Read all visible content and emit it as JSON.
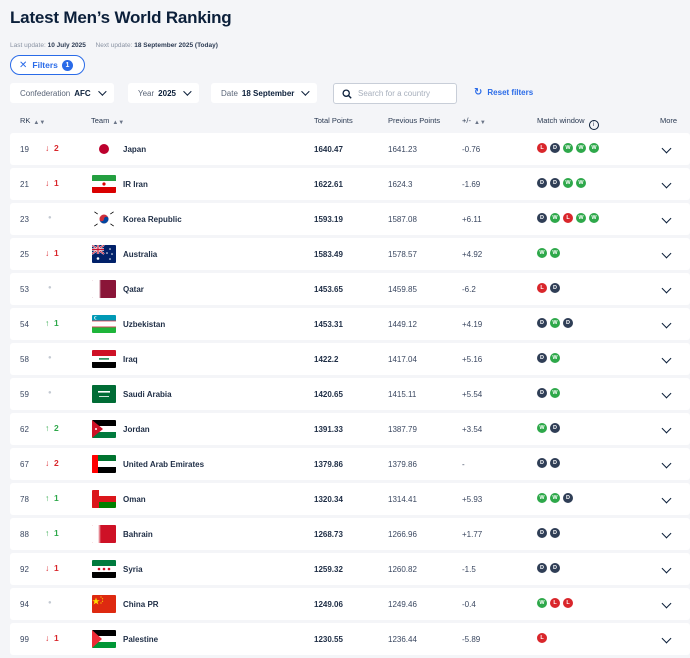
{
  "page": {
    "title": "Latest Men’s World Ranking",
    "last_update_label": "Last update:",
    "last_update": "10 July 2025",
    "next_update_label": "Next update:",
    "next_update": "18 September 2025 (Today)"
  },
  "filters": {
    "button_label": "Filters",
    "count": "1",
    "confederation_label": "Confederation",
    "confederation_value": "AFC",
    "year_label": "Year",
    "year_value": "2025",
    "date_label": "Date",
    "date_value": "18 September",
    "search_placeholder": "Search for a country",
    "reset_label": "Reset filters"
  },
  "columns": {
    "rk": "RK",
    "team": "Team",
    "total_points": "Total Points",
    "previous_points": "Previous Points",
    "diff": "+/-",
    "match_window": "Match window",
    "more": "More"
  },
  "colors": {
    "accent": "#2a6be8",
    "win": "#2ea84a",
    "draw": "#2f3e56",
    "loss": "#d9262b",
    "down": "#d9262b",
    "up": "#2ea84a"
  },
  "icons": {
    "down": "arrow-down-icon",
    "up": "arrow-up-icon",
    "same": "dot-icon",
    "expand": "chevron-down-icon",
    "search": "search-icon",
    "reset": "refresh-icon",
    "info": "info-icon",
    "close": "close-icon"
  },
  "rows": [
    {
      "rank": "19",
      "dir": "down",
      "move": "2",
      "team": "Japan",
      "flag": "japan-flag",
      "points": "1640.47",
      "previous": "1641.23",
      "diff": "-0.76",
      "results": [
        "L",
        "D",
        "W",
        "W",
        "W"
      ]
    },
    {
      "rank": "21",
      "dir": "down",
      "move": "1",
      "team": "IR Iran",
      "flag": "iran-flag",
      "points": "1622.61",
      "previous": "1624.3",
      "diff": "-1.69",
      "results": [
        "D",
        "D",
        "W",
        "W"
      ]
    },
    {
      "rank": "23",
      "dir": "same",
      "move": "",
      "team": "Korea Republic",
      "flag": "korea-flag",
      "points": "1593.19",
      "previous": "1587.08",
      "diff": "+6.11",
      "results": [
        "D",
        "W",
        "L",
        "W",
        "W"
      ]
    },
    {
      "rank": "25",
      "dir": "down",
      "move": "1",
      "team": "Australia",
      "flag": "australia-flag",
      "points": "1583.49",
      "previous": "1578.57",
      "diff": "+4.92",
      "results": [
        "W",
        "W"
      ]
    },
    {
      "rank": "53",
      "dir": "same",
      "move": "",
      "team": "Qatar",
      "flag": "qatar-flag",
      "points": "1453.65",
      "previous": "1459.85",
      "diff": "-6.2",
      "results": [
        "L",
        "D"
      ]
    },
    {
      "rank": "54",
      "dir": "up",
      "move": "1",
      "team": "Uzbekistan",
      "flag": "uzbekistan-flag",
      "points": "1453.31",
      "previous": "1449.12",
      "diff": "+4.19",
      "results": [
        "D",
        "W",
        "D"
      ]
    },
    {
      "rank": "58",
      "dir": "same",
      "move": "",
      "team": "Iraq",
      "flag": "iraq-flag",
      "points": "1422.2",
      "previous": "1417.04",
      "diff": "+5.16",
      "results": [
        "D",
        "W"
      ]
    },
    {
      "rank": "59",
      "dir": "same",
      "move": "",
      "team": "Saudi Arabia",
      "flag": "saudi-flag",
      "points": "1420.65",
      "previous": "1415.11",
      "diff": "+5.54",
      "results": [
        "D",
        "W"
      ]
    },
    {
      "rank": "62",
      "dir": "up",
      "move": "2",
      "team": "Jordan",
      "flag": "jordan-flag",
      "points": "1391.33",
      "previous": "1387.79",
      "diff": "+3.54",
      "results": [
        "W",
        "D"
      ]
    },
    {
      "rank": "67",
      "dir": "down",
      "move": "2",
      "team": "United Arab Emirates",
      "flag": "uae-flag",
      "points": "1379.86",
      "previous": "1379.86",
      "diff": "-",
      "results": [
        "D",
        "D"
      ]
    },
    {
      "rank": "78",
      "dir": "up",
      "move": "1",
      "team": "Oman",
      "flag": "oman-flag",
      "points": "1320.34",
      "previous": "1314.41",
      "diff": "+5.93",
      "results": [
        "W",
        "W",
        "D"
      ]
    },
    {
      "rank": "88",
      "dir": "up",
      "move": "1",
      "team": "Bahrain",
      "flag": "bahrain-flag",
      "points": "1268.73",
      "previous": "1266.96",
      "diff": "+1.77",
      "results": [
        "D",
        "D"
      ]
    },
    {
      "rank": "92",
      "dir": "down",
      "move": "1",
      "team": "Syria",
      "flag": "syria-flag",
      "points": "1259.32",
      "previous": "1260.82",
      "diff": "-1.5",
      "results": [
        "D",
        "D"
      ]
    },
    {
      "rank": "94",
      "dir": "same",
      "move": "",
      "team": "China PR",
      "flag": "china-flag",
      "points": "1249.06",
      "previous": "1249.46",
      "diff": "-0.4",
      "results": [
        "W",
        "L",
        "L"
      ]
    },
    {
      "rank": "99",
      "dir": "down",
      "move": "1",
      "team": "Palestine",
      "flag": "palestine-flag",
      "points": "1230.55",
      "previous": "1236.44",
      "diff": "-5.89",
      "results": [
        "L"
      ]
    }
  ]
}
